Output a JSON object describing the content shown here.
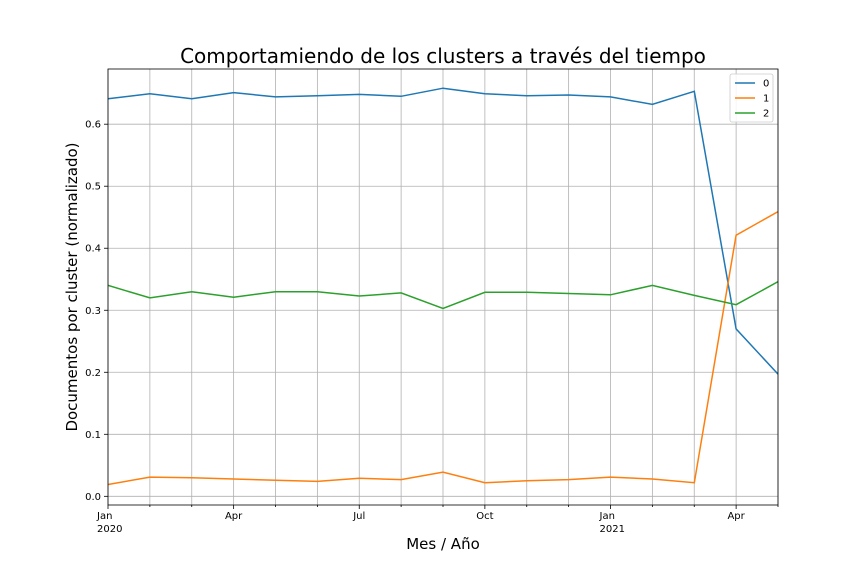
{
  "chart_data": {
    "type": "line",
    "title": "Comportamiendo de los clusters a través del tiempo",
    "xlabel": "Mes / Año",
    "ylabel": "Documentos por cluster (normalizado)",
    "x": [
      "2020-01",
      "2020-02",
      "2020-03",
      "2020-04",
      "2020-05",
      "2020-06",
      "2020-07",
      "2020-08",
      "2020-09",
      "2020-10",
      "2020-11",
      "2020-12",
      "2021-01",
      "2021-02",
      "2021-03",
      "2021-04",
      "2021-05"
    ],
    "x_ticks": [
      {
        "index": 0,
        "label": "Jan",
        "sublabel": "2020"
      },
      {
        "index": 3,
        "label": "Apr",
        "sublabel": ""
      },
      {
        "index": 6,
        "label": "Jul",
        "sublabel": ""
      },
      {
        "index": 9,
        "label": "Oct",
        "sublabel": ""
      },
      {
        "index": 12,
        "label": "Jan",
        "sublabel": "2021"
      },
      {
        "index": 15,
        "label": "Apr",
        "sublabel": ""
      }
    ],
    "y_ticks": [
      "0.0",
      "0.1",
      "0.2",
      "0.3",
      "0.4",
      "0.5",
      "0.6"
    ],
    "ylim": [
      -0.014,
      0.689
    ],
    "grid": true,
    "legend_position": "top-right",
    "series": [
      {
        "name": "0",
        "color": "#1f77b4",
        "values": [
          0.641,
          0.649,
          0.641,
          0.651,
          0.644,
          0.646,
          0.648,
          0.645,
          0.658,
          0.649,
          0.646,
          0.647,
          0.644,
          0.632,
          0.653,
          0.27,
          0.197
        ]
      },
      {
        "name": "1",
        "color": "#ff7f0e",
        "values": [
          0.019,
          0.031,
          0.03,
          0.028,
          0.026,
          0.024,
          0.029,
          0.027,
          0.039,
          0.022,
          0.025,
          0.027,
          0.031,
          0.028,
          0.022,
          0.421,
          0.459
        ]
      },
      {
        "name": "2",
        "color": "#2ca02c",
        "values": [
          0.34,
          0.32,
          0.33,
          0.321,
          0.33,
          0.33,
          0.323,
          0.328,
          0.303,
          0.329,
          0.329,
          0.327,
          0.325,
          0.34,
          0.324,
          0.309,
          0.346
        ]
      }
    ]
  }
}
